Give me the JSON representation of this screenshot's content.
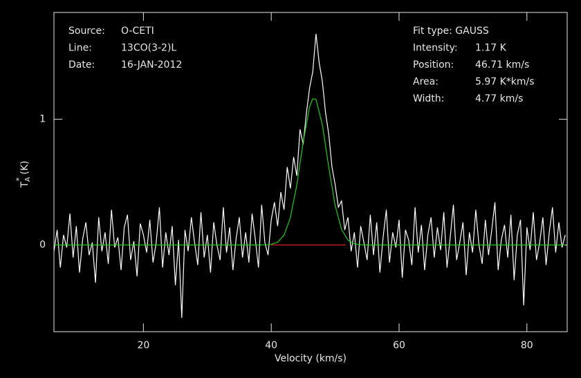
{
  "chart_data": {
    "type": "line",
    "xlabel": "Velocity (km/s)",
    "ylabel": {
      "main": "T",
      "sub": "A",
      "sup": "*",
      "unit": "(K)"
    },
    "info_left": [
      {
        "label": "Source:",
        "value": "O-CETI"
      },
      {
        "label": "Line:",
        "value": "13CO(3-2)L"
      },
      {
        "label": "Date:",
        "value": "16-JAN-2012"
      }
    ],
    "info_right": [
      {
        "label": "Fit type: GAUSS",
        "value": ""
      },
      {
        "label": "Intensity:",
        "value": "1.17 K"
      },
      {
        "label": "Position:",
        "value": "46.71 km/s"
      },
      {
        "label": "Area:",
        "value": "5.97 K*km/s"
      },
      {
        "label": "Width:",
        "value": "4.77 km/s"
      }
    ],
    "xlim": [
      6,
      86.3
    ],
    "ylim": [
      -0.69,
      1.85
    ],
    "xticks": [
      20,
      40,
      60,
      80
    ],
    "yticks": [
      0,
      1
    ],
    "series": [
      {
        "name": "spectrum",
        "color": "#ffffff",
        "x": [
          6,
          6.5,
          7,
          7.5,
          8,
          8.5,
          9,
          9.5,
          10,
          10.5,
          11,
          11.5,
          12,
          12.5,
          13,
          13.5,
          14,
          14.5,
          15,
          15.5,
          16,
          16.5,
          17,
          17.5,
          18,
          18.5,
          19,
          19.5,
          20,
          20.5,
          21,
          21.5,
          22,
          22.5,
          23,
          23.5,
          24,
          24.5,
          25,
          25.5,
          26,
          26.5,
          27,
          27.5,
          28,
          28.5,
          29,
          29.5,
          30,
          30.5,
          31,
          31.5,
          32,
          32.5,
          33,
          33.5,
          34,
          34.5,
          35,
          35.5,
          36,
          36.5,
          37,
          37.5,
          38,
          38.5,
          39,
          39.5,
          40,
          40.5,
          41,
          41.5,
          42,
          42.5,
          43,
          43.5,
          44,
          44.5,
          45,
          45.5,
          46,
          46.5,
          47,
          47.5,
          48,
          48.5,
          49,
          49.5,
          50,
          50.5,
          51,
          51.5,
          52,
          52.5,
          53,
          53.5,
          54,
          54.5,
          55,
          55.5,
          56,
          56.5,
          57,
          57.5,
          58,
          58.5,
          59,
          59.5,
          60,
          60.5,
          61,
          61.5,
          62,
          62.5,
          63,
          63.5,
          64,
          64.5,
          65,
          65.5,
          66,
          66.5,
          67,
          67.5,
          68,
          68.5,
          69,
          69.5,
          70,
          70.5,
          71,
          71.5,
          72,
          72.5,
          73,
          73.5,
          74,
          74.5,
          75,
          75.5,
          76,
          76.5,
          77,
          77.5,
          78,
          78.5,
          79,
          79.5,
          80,
          80.5,
          81,
          81.5,
          82,
          82.5,
          83,
          83.5,
          84,
          84.5,
          85,
          85.5,
          86
        ],
        "values": [
          -0.05,
          0.12,
          -0.18,
          0.08,
          -0.02,
          0.25,
          -0.1,
          0.15,
          -0.22,
          0.05,
          0.18,
          -0.08,
          0.02,
          -0.3,
          0.22,
          -0.05,
          0.1,
          -0.15,
          0.28,
          -0.02,
          0.06,
          -0.2,
          0.14,
          0.24,
          -0.12,
          0.03,
          -0.25,
          0.17,
          0.08,
          -0.06,
          0.2,
          -0.14,
          0.02,
          0.3,
          -0.18,
          0.1,
          -0.08,
          0.15,
          -0.32,
          0.04,
          -0.58,
          0.12,
          -0.05,
          0.22,
          0.02,
          -0.16,
          0.26,
          -0.1,
          0.08,
          -0.22,
          0.18,
          0.0,
          -0.12,
          0.3,
          -0.06,
          0.14,
          -0.2,
          0.05,
          0.22,
          -0.1,
          0.1,
          -0.14,
          0.25,
          0.05,
          -0.18,
          0.32,
          0.02,
          -0.08,
          0.2,
          0.34,
          0.15,
          0.42,
          0.28,
          0.62,
          0.45,
          0.7,
          0.55,
          0.92,
          0.8,
          1.05,
          1.25,
          1.38,
          1.68,
          1.45,
          1.3,
          1.05,
          0.88,
          0.62,
          0.48,
          0.3,
          0.35,
          0.12,
          0.22,
          -0.05,
          0.1,
          -0.18,
          0.15,
          0.02,
          -0.12,
          0.24,
          -0.08,
          0.18,
          -0.22,
          0.06,
          0.28,
          -0.14,
          0.1,
          -0.02,
          0.2,
          -0.26,
          0.12,
          0.04,
          -0.16,
          0.3,
          -0.06,
          0.16,
          -0.2,
          0.08,
          0.22,
          -0.1,
          0.14,
          -0.04,
          0.26,
          -0.18,
          0.06,
          0.32,
          -0.12,
          0.02,
          0.18,
          -0.24,
          0.1,
          -0.06,
          0.28,
          0.0,
          -0.15,
          0.2,
          -0.08,
          0.12,
          0.34,
          -0.2,
          0.04,
          0.16,
          -0.1,
          0.24,
          -0.28,
          0.08,
          0.2,
          -0.48,
          0.14,
          -0.04,
          0.26,
          -0.12,
          0.02,
          0.22,
          -0.16,
          0.1,
          0.3,
          -0.06,
          0.18,
          -0.02,
          0.08
        ]
      },
      {
        "name": "gauss-fit",
        "color": "#22cc22",
        "x": [
          6,
          38,
          39,
          40,
          41,
          42,
          43,
          44,
          45,
          46,
          46.5,
          47,
          48,
          49,
          50,
          51,
          52,
          53,
          54,
          55,
          86
        ],
        "values": [
          0,
          0,
          0.001,
          0.005,
          0.022,
          0.078,
          0.219,
          0.478,
          0.819,
          1.1,
          1.164,
          1.158,
          0.955,
          0.618,
          0.313,
          0.124,
          0.039,
          0.009,
          0.002,
          0,
          0
        ]
      },
      {
        "name": "baseline",
        "color": "#dd2222",
        "x": [
          40,
          51.7
        ],
        "values": [
          0,
          0
        ]
      }
    ]
  }
}
